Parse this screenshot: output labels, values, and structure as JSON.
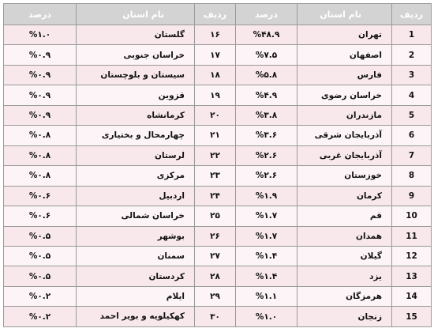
{
  "headers": {
    "rank": "ردیف",
    "province": "نام استان",
    "percent": "درصد"
  },
  "rows_right": [
    {
      "rank": "1",
      "province": "تهران",
      "percent": "%۴۸.۹"
    },
    {
      "rank": "2",
      "province": "اصفهان",
      "percent": "%۷.۵"
    },
    {
      "rank": "3",
      "province": "فارس",
      "percent": "%۵.۸"
    },
    {
      "rank": "4",
      "province": "خراسان رضوی",
      "percent": "%۴.۹"
    },
    {
      "rank": "5",
      "province": "مازندران",
      "percent": "%۳.۸"
    },
    {
      "rank": "6",
      "province": "آذربایجان شرقی",
      "percent": "%۳.۶"
    },
    {
      "rank": "7",
      "province": "آذربایجان غربی",
      "percent": "%۲.۶"
    },
    {
      "rank": "8",
      "province": "خوزستان",
      "percent": "%۲.۶"
    },
    {
      "rank": "9",
      "province": "کرمان",
      "percent": "%۱.۹"
    },
    {
      "rank": "10",
      "province": "قم",
      "percent": "%۱.۷"
    },
    {
      "rank": "11",
      "province": "همدان",
      "percent": "%۱.۷"
    },
    {
      "rank": "12",
      "province": "گیلان",
      "percent": "%۱.۴"
    },
    {
      "rank": "13",
      "province": "یزد",
      "percent": "%۱.۴"
    },
    {
      "rank": "14",
      "province": "هرمزگان",
      "percent": "%۱.۱"
    },
    {
      "rank": "15",
      "province": "زنجان",
      "percent": "%۱.۰"
    }
  ],
  "rows_left": [
    {
      "rank": "۱۶",
      "province": "گلستان",
      "percent": "%۱.۰"
    },
    {
      "rank": "۱۷",
      "province": "خراسان جنوبی",
      "percent": "%۰.۹"
    },
    {
      "rank": "۱۸",
      "province": "سیستان و بلوچستان",
      "percent": "%۰.۹"
    },
    {
      "rank": "۱۹",
      "province": "قزوین",
      "percent": "%۰.۹"
    },
    {
      "rank": "۲۰",
      "province": "کرمانشاه",
      "percent": "%۰.۹"
    },
    {
      "rank": "۲۱",
      "province": "چهارمحال و بختیاری",
      "percent": "%۰.۸"
    },
    {
      "rank": "۲۲",
      "province": "لرستان",
      "percent": "%۰.۸"
    },
    {
      "rank": "۲۳",
      "province": "مرکزی",
      "percent": "%۰.۸"
    },
    {
      "rank": "۲۴",
      "province": "اردبیل",
      "percent": "%۰.۶"
    },
    {
      "rank": "۲۵",
      "province": "خراسان شمالی",
      "percent": "%۰.۶"
    },
    {
      "rank": "۲۶",
      "province": "بوشهر",
      "percent": "%۰.۵"
    },
    {
      "rank": "۲۷",
      "province": "سمنان",
      "percent": "%۰.۵"
    },
    {
      "rank": "۲۸",
      "province": "کردستان",
      "percent": "%۰.۵"
    },
    {
      "rank": "۲۹",
      "province": "ایلام",
      "percent": "%۰.۲"
    },
    {
      "rank": "۳۰",
      "province": "کهکیلویه و بویر احمد",
      "percent": "%۰.۲"
    }
  ],
  "colors": {
    "header_bg": "#d3d3d3",
    "header_text": "#ffffff",
    "row_odd": "#f8e8ec",
    "row_even": "#fcf4f6",
    "border": "#9a9a9a"
  }
}
